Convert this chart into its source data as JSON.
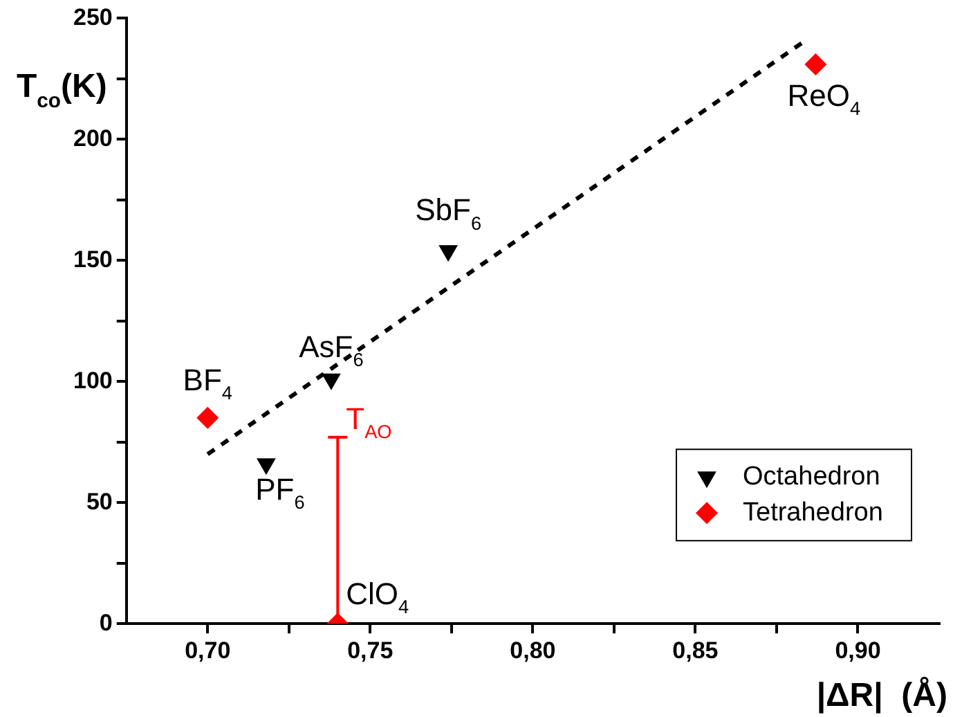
{
  "chart_data": {
    "type": "scatter",
    "xlabel": "|ΔR|  (Å)",
    "ylabel": "T$_{co}$(K)",
    "xlim": [
      0.675,
      0.925
    ],
    "xticks": [
      {
        "value": 0.7,
        "label": "0,70"
      },
      {
        "value": 0.725,
        "label": null
      },
      {
        "value": 0.75,
        "label": "0,75"
      },
      {
        "value": 0.775,
        "label": null
      },
      {
        "value": 0.8,
        "label": "0,80"
      },
      {
        "value": 0.825,
        "label": null
      },
      {
        "value": 0.85,
        "label": "0,85"
      },
      {
        "value": 0.875,
        "label": null
      },
      {
        "value": 0.9,
        "label": "0,90"
      }
    ],
    "ylim": [
      0,
      250
    ],
    "yticks": [
      0,
      {
        "value": 25,
        "label": null
      },
      50,
      {
        "value": 75,
        "label": null
      },
      100,
      {
        "value": 125,
        "label": null
      },
      150,
      {
        "value": 175,
        "label": null
      },
      200,
      {
        "value": 225,
        "label": null
      },
      250
    ],
    "grid": false,
    "legend": "bottom right",
    "series": [
      {
        "name": "Octahedron",
        "color": "#000000",
        "marker": "triangle-down",
        "x": [
          0.718,
          0.738,
          0.774
        ],
        "values": [
          66,
          101,
          154
        ]
      },
      {
        "name": "Tetrahedron",
        "color": "#ff0000",
        "marker": "diamond",
        "x": [
          0.7,
          0.74,
          0.887
        ],
        "values": [
          85,
          0,
          231
        ],
        "errors": [
          null,
          [
            0,
            77
          ],
          null
        ]
      },
      {
        "type": "line",
        "color": "#000000",
        "marker": "none",
        "line_style": "dashed",
        "x": [
          0.7,
          0.883
        ],
        "values": [
          70,
          240
        ]
      }
    ],
    "annotations": [
      {
        "text": "PF$_{6}$",
        "x": 0.718,
        "y": 66
      },
      {
        "text": "AsF$_{6}$",
        "x": 0.738,
        "y": 101
      },
      {
        "text": "SbF$_{6}$",
        "x": 0.774,
        "y": 154
      },
      {
        "text": "BF$_{4}$",
        "x": 0.7,
        "y": 85
      },
      {
        "text": "ClO$_{4}$",
        "x": 0.74,
        "y": 0
      },
      {
        "text": "ReO$_{4}$",
        "x": 0.887,
        "y": 231
      },
      {
        "text": "T$_{AO}$",
        "x": 0.74,
        "y": 77
      }
    ]
  }
}
